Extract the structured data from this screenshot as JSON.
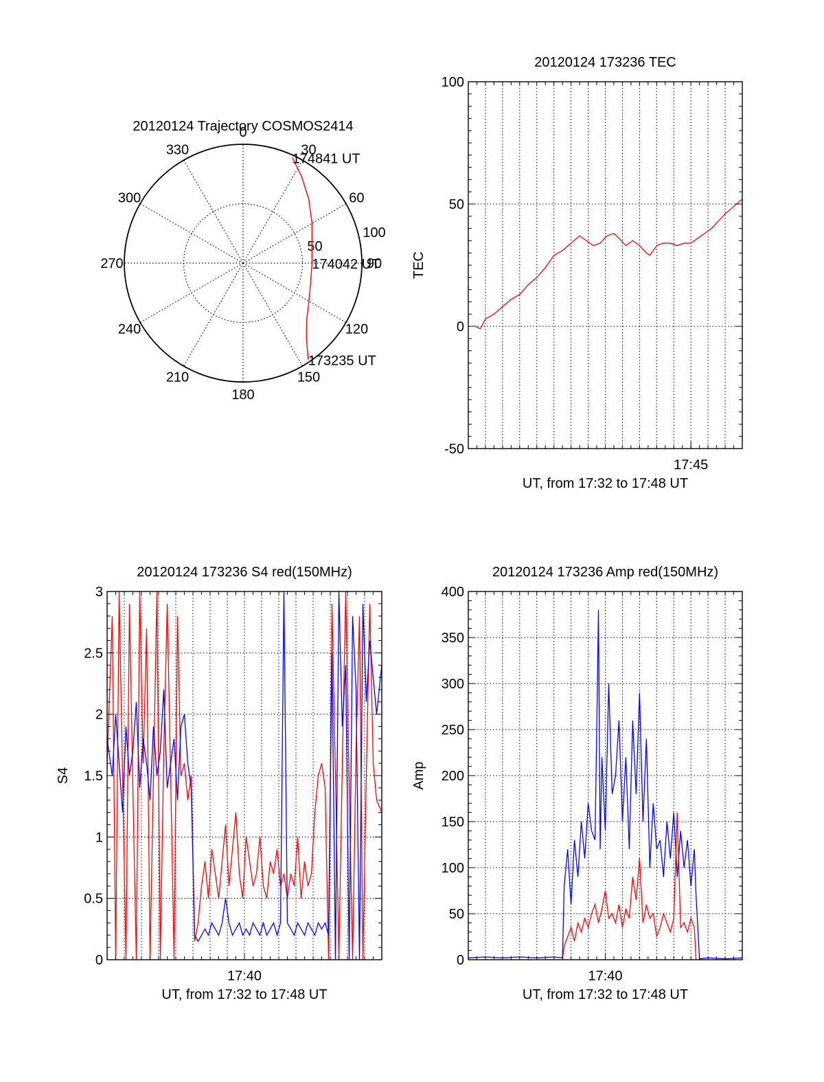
{
  "chart_data": [
    {
      "type": "polar",
      "title": "20120124 Trajectory COSMOS2414",
      "angle_labels": [
        "0",
        "30",
        "60",
        "90",
        "120",
        "150",
        "180",
        "210",
        "240",
        "270",
        "300",
        "330"
      ],
      "angles_deg": [
        0,
        30,
        60,
        90,
        120,
        150,
        180,
        210,
        240,
        270,
        300,
        330
      ],
      "radius_labels": [
        "50",
        "100"
      ],
      "radius_values": [
        50,
        100
      ],
      "rlim": [
        0,
        100
      ],
      "grid": true,
      "trajectory": {
        "color": "#ff0000",
        "points": [
          {
            "azimuth": 146,
            "zenith": 98
          },
          {
            "azimuth": 140,
            "zenith": 83
          },
          {
            "azimuth": 132,
            "zenith": 72
          },
          {
            "azimuth": 120,
            "zenith": 64
          },
          {
            "azimuth": 105,
            "zenith": 59
          },
          {
            "azimuth": 90,
            "zenith": 58
          },
          {
            "azimuth": 75,
            "zenith": 60
          },
          {
            "azimuth": 60,
            "zenith": 67
          },
          {
            "azimuth": 46,
            "zenith": 77
          },
          {
            "azimuth": 34,
            "zenith": 88
          },
          {
            "azimuth": 25,
            "zenith": 98
          }
        ]
      },
      "annotations": [
        {
          "text": "174841 UT",
          "azimuth": 25,
          "zenith": 98
        },
        {
          "text": "174042 UT",
          "azimuth": 90,
          "zenith": 58
        },
        {
          "text": "173235 UT",
          "azimuth": 146,
          "zenith": 98
        }
      ]
    },
    {
      "type": "line",
      "title": "20120124 173236 TEC",
      "xlabel": "UT, from 17:32 to 17:48 UT",
      "ylabel": "TEC",
      "xlim": [
        0,
        16
      ],
      "ylim": [
        -50,
        100
      ],
      "yticks": [
        -50,
        0,
        50,
        100
      ],
      "xticks": [
        {
          "value": 13,
          "label": "17:45"
        }
      ],
      "grid": true,
      "series": [
        {
          "color": "#ff0000",
          "x": [
            0.4,
            0.7,
            1.0,
            1.5,
            2.0,
            2.5,
            3.0,
            3.5,
            4.0,
            4.5,
            5.0,
            5.5,
            6.0,
            6.5,
            6.9,
            7.3,
            7.7,
            8.1,
            8.5,
            8.8,
            9.2,
            9.6,
            10.0,
            10.4,
            10.6,
            10.8,
            11.0,
            11.4,
            11.8,
            12.2,
            12.6,
            13.0,
            13.4,
            13.8,
            14.2,
            14.6,
            15.0,
            15.5,
            16.0
          ],
          "y": [
            0,
            -1,
            3,
            5,
            8,
            11,
            13,
            17,
            20,
            24,
            29,
            31,
            34,
            37,
            35,
            33,
            34,
            37,
            38,
            36,
            33,
            35,
            33,
            30,
            29,
            31,
            33,
            34,
            34,
            33,
            34,
            34,
            36,
            38,
            40,
            43,
            46,
            49,
            52
          ]
        }
      ]
    },
    {
      "type": "line",
      "title": "20120124 173236 S4 red(150MHz)",
      "xlabel": "UT, from 17:32 to 17:48 UT",
      "ylabel": "S4",
      "xlim": [
        0,
        16
      ],
      "ylim": [
        0,
        3
      ],
      "yticks": [
        0,
        0.5,
        1,
        1.5,
        2,
        2.5,
        3
      ],
      "ytick_labels": [
        "0",
        "0.5",
        "1",
        "1.5",
        "2",
        "2.5",
        "3"
      ],
      "xticks": [
        {
          "value": 8,
          "label": "17:40"
        }
      ],
      "grid": true,
      "series": [
        {
          "color": "#ff0000",
          "x": [
            0.0,
            0.3,
            0.5,
            0.7,
            0.9,
            1.1,
            1.3,
            1.5,
            1.7,
            1.9,
            2.1,
            2.3,
            2.5,
            2.7,
            2.9,
            3.1,
            3.3,
            3.5,
            3.7,
            3.9,
            4.1,
            4.3,
            4.5,
            4.7,
            4.9,
            5.1,
            5.3,
            5.5,
            5.7,
            5.9,
            6.1,
            6.3,
            6.5,
            6.7,
            6.9,
            7.1,
            7.3,
            7.5,
            7.7,
            7.9,
            8.1,
            8.3,
            8.5,
            8.7,
            8.9,
            9.1,
            9.3,
            9.5,
            9.7,
            9.9,
            10.1,
            10.3,
            10.5,
            10.7,
            10.9,
            11.1,
            11.3,
            11.5,
            11.7,
            11.9,
            12.1,
            12.3,
            12.5,
            12.7,
            12.9,
            13.1,
            13.3,
            13.5,
            13.7,
            13.9,
            14.1,
            14.3,
            14.5,
            14.7,
            14.9,
            15.1,
            15.3,
            15.5,
            15.7,
            16.0
          ],
          "y": [
            1.6,
            2.8,
            0.0,
            3.0,
            1.5,
            0.0,
            2.9,
            1.4,
            0.0,
            3.0,
            1.6,
            2.7,
            0.0,
            1.5,
            3.0,
            0.0,
            1.7,
            2.9,
            1.5,
            0.0,
            2.8,
            1.5,
            1.6,
            1.3,
            1.5,
            0.15,
            0.3,
            0.6,
            0.8,
            0.5,
            0.9,
            0.7,
            0.5,
            0.8,
            1.1,
            0.6,
            0.9,
            1.2,
            0.7,
            0.5,
            1.0,
            0.8,
            0.6,
            0.7,
            1.0,
            0.6,
            0.5,
            0.8,
            0.7,
            0.9,
            0.6,
            0.7,
            0.5,
            0.7,
            0.6,
            1.0,
            0.5,
            0.8,
            0.6,
            0.7,
            1.2,
            1.5,
            1.6,
            1.4,
            0.0,
            2.9,
            1.5,
            0.0,
            1.6,
            3.0,
            1.4,
            0.0,
            1.7,
            2.8,
            0.0,
            1.5,
            2.9,
            1.6,
            1.3,
            1.2
          ]
        },
        {
          "color": "#0000ff",
          "x": [
            0.0,
            0.3,
            0.5,
            0.7,
            0.9,
            1.1,
            1.3,
            1.5,
            1.7,
            1.9,
            2.1,
            2.3,
            2.5,
            2.7,
            2.9,
            3.1,
            3.3,
            3.5,
            3.7,
            3.9,
            4.1,
            4.3,
            4.5,
            4.7,
            4.9,
            5.1,
            5.3,
            5.5,
            5.7,
            5.9,
            6.1,
            6.3,
            6.5,
            6.7,
            6.9,
            7.1,
            7.3,
            7.5,
            7.7,
            7.9,
            8.1,
            8.3,
            8.5,
            8.7,
            8.9,
            9.1,
            9.3,
            9.5,
            9.7,
            9.9,
            10.1,
            10.3,
            10.5,
            10.7,
            10.9,
            11.1,
            11.3,
            11.5,
            11.7,
            11.9,
            12.1,
            12.3,
            12.5,
            12.7,
            12.9,
            13.1,
            13.3,
            13.5,
            13.7,
            13.9,
            14.1,
            14.3,
            14.5,
            14.7,
            14.9,
            15.1,
            15.3,
            15.5,
            15.7,
            16.0
          ],
          "y": [
            1.8,
            1.5,
            2.0,
            1.6,
            1.2,
            1.9,
            1.5,
            1.7,
            2.1,
            1.4,
            1.8,
            1.6,
            1.3,
            1.9,
            1.5,
            1.7,
            2.2,
            1.4,
            1.6,
            1.8,
            1.3,
            1.9,
            2.0,
            1.6,
            1.4,
            0.2,
            0.15,
            0.2,
            0.25,
            0.2,
            0.3,
            0.25,
            0.2,
            0.3,
            0.5,
            0.3,
            0.2,
            0.25,
            0.3,
            0.2,
            0.25,
            0.2,
            0.3,
            0.25,
            0.2,
            0.3,
            0.2,
            0.25,
            0.3,
            0.2,
            0.3,
            3.0,
            0.3,
            0.25,
            0.2,
            0.3,
            0.25,
            0.2,
            0.3,
            0.25,
            0.2,
            0.3,
            0.25,
            0.3,
            0.2,
            2.5,
            0.0,
            3.0,
            1.9,
            2.4,
            0.0,
            2.8,
            2.2,
            0.0,
            2.9,
            2.1,
            2.6,
            2.3,
            2.0,
            2.4
          ]
        }
      ]
    },
    {
      "type": "line",
      "title": "20120124 173236 Amp red(150MHz)",
      "xlabel": "UT, from 17:32 to 17:48 UT",
      "ylabel": "Amp",
      "xlim": [
        0,
        16
      ],
      "ylim": [
        0,
        400
      ],
      "yticks": [
        0,
        50,
        100,
        150,
        200,
        250,
        300,
        350,
        400
      ],
      "xticks": [
        {
          "value": 8,
          "label": "17:40"
        }
      ],
      "grid": true,
      "series": [
        {
          "color": "#0000ff",
          "x": [
            0.0,
            1.0,
            2.0,
            3.0,
            4.0,
            5.0,
            5.5,
            5.6,
            5.8,
            6.0,
            6.2,
            6.4,
            6.6,
            6.8,
            7.0,
            7.2,
            7.4,
            7.5,
            7.6,
            7.7,
            7.8,
            8.0,
            8.2,
            8.4,
            8.6,
            8.8,
            9.0,
            9.2,
            9.4,
            9.6,
            9.8,
            10.0,
            10.2,
            10.4,
            10.6,
            10.8,
            11.0,
            11.2,
            11.4,
            11.6,
            11.8,
            12.0,
            12.2,
            12.4,
            12.6,
            12.8,
            13.0,
            13.2,
            13.3,
            13.5,
            14.0,
            15.0,
            16.0
          ],
          "y": [
            2,
            3,
            2,
            3,
            2,
            3,
            2,
            80,
            120,
            60,
            130,
            90,
            150,
            110,
            170,
            140,
            130,
            250,
            380,
            120,
            220,
            140,
            300,
            180,
            200,
            260,
            150,
            220,
            120,
            260,
            180,
            290,
            150,
            240,
            100,
            170,
            120,
            130,
            90,
            150,
            110,
            160,
            90,
            140,
            100,
            130,
            80,
            120,
            70,
            1,
            2,
            1,
            2
          ]
        },
        {
          "color": "#ff0000",
          "x": [
            5.5,
            5.6,
            5.8,
            6.0,
            6.2,
            6.4,
            6.6,
            6.8,
            7.0,
            7.2,
            7.4,
            7.6,
            7.8,
            8.0,
            8.2,
            8.4,
            8.6,
            8.8,
            9.0,
            9.2,
            9.4,
            9.6,
            9.8,
            10.0,
            10.2,
            10.4,
            10.6,
            10.8,
            11.0,
            11.2,
            11.4,
            11.6,
            11.8,
            12.0,
            12.2,
            12.4,
            12.6,
            12.8,
            13.0,
            13.2,
            13.3
          ],
          "y": [
            0,
            15,
            25,
            35,
            20,
            40,
            30,
            45,
            35,
            50,
            60,
            40,
            55,
            75,
            45,
            50,
            40,
            60,
            35,
            55,
            45,
            90,
            65,
            110,
            40,
            60,
            45,
            50,
            25,
            35,
            50,
            40,
            30,
            45,
            160,
            35,
            40,
            30,
            45,
            35,
            0
          ]
        }
      ]
    }
  ]
}
